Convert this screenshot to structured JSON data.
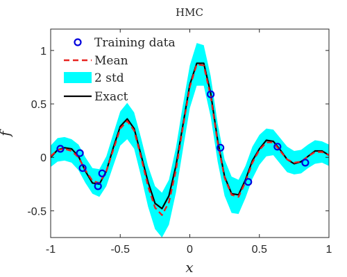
{
  "chart_data": {
    "type": "line",
    "title": "HMC",
    "xlabel": "x",
    "ylabel": "f",
    "xlim": [
      -1,
      1
    ],
    "ylim": [
      -0.75,
      1.2
    ],
    "xticks": [
      -1,
      -0.5,
      0,
      0.5,
      1
    ],
    "xtick_labels": [
      "-1",
      "-0.5",
      "0",
      "0.5",
      "1"
    ],
    "yticks": [
      -0.5,
      0,
      0.5,
      1
    ],
    "ytick_labels": [
      "-0.5",
      "0",
      "0.5",
      "1"
    ],
    "grid": false,
    "legend_position": "top-left",
    "legend": {
      "training": "Training  data",
      "mean": "Mean",
      "std": "2  std",
      "exact": "Exact"
    },
    "colors": {
      "training": "#0000dd",
      "mean": "#e8221f",
      "std": "#00ffff",
      "exact": "#000000"
    },
    "x": [
      -1,
      -0.95,
      -0.9,
      -0.85,
      -0.8,
      -0.75,
      -0.7,
      -0.65,
      -0.6,
      -0.55,
      -0.5,
      -0.45,
      -0.4,
      -0.35,
      -0.3,
      -0.25,
      -0.2,
      -0.15,
      -0.1,
      -0.05,
      0,
      0.05,
      0.1,
      0.15,
      0.2,
      0.25,
      0.3,
      0.35,
      0.4,
      0.45,
      0.5,
      0.55,
      0.6,
      0.65,
      0.7,
      0.75,
      0.8,
      0.85,
      0.9,
      0.95,
      1
    ],
    "series": [
      {
        "name": "Exact",
        "values": [
          0,
          0.07,
          0.09,
          0.08,
          0.01,
          -0.13,
          -0.24,
          -0.25,
          -0.13,
          0.09,
          0.29,
          0.36,
          0.27,
          0.02,
          -0.23,
          -0.43,
          -0.48,
          -0.36,
          -0.08,
          0.3,
          0.68,
          0.88,
          0.88,
          0.6,
          0.16,
          -0.18,
          -0.34,
          -0.35,
          -0.21,
          -0.03,
          0.08,
          0.16,
          0.15,
          0.07,
          -0.02,
          -0.06,
          -0.04,
          0.01,
          0.06,
          0.06,
          0.02
        ]
      },
      {
        "name": "Mean",
        "values": [
          0.01,
          0.07,
          0.08,
          0.06,
          0.0,
          -0.12,
          -0.22,
          -0.24,
          -0.13,
          0.07,
          0.27,
          0.34,
          0.25,
          0.0,
          -0.27,
          -0.47,
          -0.54,
          -0.42,
          -0.12,
          0.28,
          0.66,
          0.87,
          0.86,
          0.57,
          0.14,
          -0.19,
          -0.35,
          -0.37,
          -0.23,
          -0.05,
          0.07,
          0.14,
          0.14,
          0.06,
          -0.02,
          -0.05,
          -0.04,
          0.01,
          0.05,
          0.05,
          0.02
        ]
      },
      {
        "name": "2  std",
        "values": [
          0.01,
          0.07,
          0.08,
          0.06,
          0.0,
          -0.12,
          -0.22,
          -0.24,
          -0.13,
          0.07,
          0.27,
          0.34,
          0.25,
          0.0,
          -0.27,
          -0.47,
          -0.54,
          -0.42,
          -0.12,
          0.28,
          0.66,
          0.87,
          0.86,
          0.57,
          0.14,
          -0.19,
          -0.35,
          -0.37,
          -0.23,
          -0.05,
          0.07,
          0.14,
          0.14,
          0.06,
          -0.02,
          -0.05,
          -0.04,
          0.01,
          0.05,
          0.05,
          0.02
        ],
        "half_width": [
          0.1,
          0.11,
          0.11,
          0.11,
          0.12,
          0.12,
          0.12,
          0.13,
          0.14,
          0.15,
          0.16,
          0.17,
          0.17,
          0.18,
          0.19,
          0.2,
          0.21,
          0.21,
          0.21,
          0.21,
          0.2,
          0.2,
          0.19,
          0.19,
          0.18,
          0.17,
          0.17,
          0.16,
          0.15,
          0.15,
          0.14,
          0.13,
          0.12,
          0.12,
          0.12,
          0.11,
          0.11,
          0.11,
          0.11,
          0.1,
          0.1
        ]
      }
    ],
    "training_points": [
      {
        "x": -0.93,
        "y": 0.08
      },
      {
        "x": -0.79,
        "y": 0.04
      },
      {
        "x": -0.77,
        "y": -0.1
      },
      {
        "x": -0.66,
        "y": -0.27
      },
      {
        "x": -0.63,
        "y": -0.15
      },
      {
        "x": 0.15,
        "y": 0.59
      },
      {
        "x": 0.22,
        "y": 0.09
      },
      {
        "x": 0.42,
        "y": -0.23
      },
      {
        "x": 0.63,
        "y": 0.1
      },
      {
        "x": 0.83,
        "y": -0.05
      }
    ]
  }
}
